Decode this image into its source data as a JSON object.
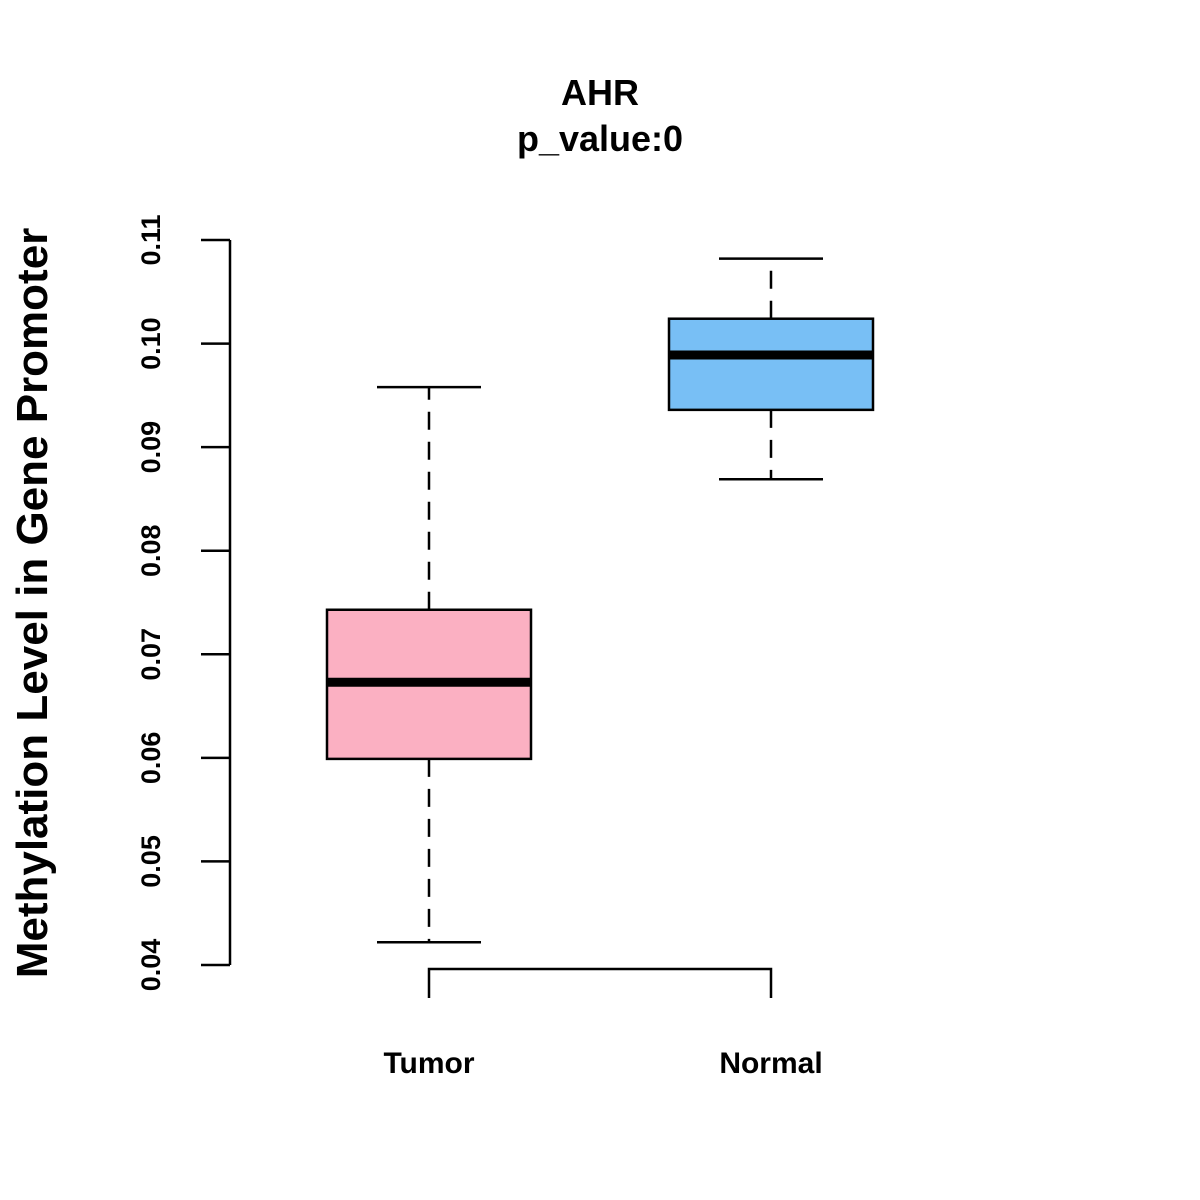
{
  "chart_data": {
    "type": "boxplot",
    "title": "AHR",
    "subtitle": "p_value:0",
    "ylabel": "Methylation Level in Gene Promoter",
    "xlabel": "",
    "ylim": [
      0.04,
      0.11
    ],
    "yticks": [
      0.04,
      0.05,
      0.06,
      0.07,
      0.08,
      0.09,
      0.1,
      0.11
    ],
    "ytick_labels": [
      "0.04",
      "0.05",
      "0.06",
      "0.07",
      "0.08",
      "0.09",
      "0.10",
      "0.11"
    ],
    "categories": [
      "Tumor",
      "Normal"
    ],
    "boxes": [
      {
        "name": "Tumor",
        "whisker_low": 0.0422,
        "q1": 0.0599,
        "median": 0.0673,
        "q3": 0.0743,
        "whisker_high": 0.0958,
        "color": "#fbb0c2"
      },
      {
        "name": "Normal",
        "whisker_low": 0.0869,
        "q1": 0.0936,
        "median": 0.0989,
        "q3": 0.1024,
        "whisker_high": 0.1082,
        "color": "#78bff5"
      }
    ],
    "bracket": {
      "from": "Tumor",
      "to": "Normal"
    }
  }
}
